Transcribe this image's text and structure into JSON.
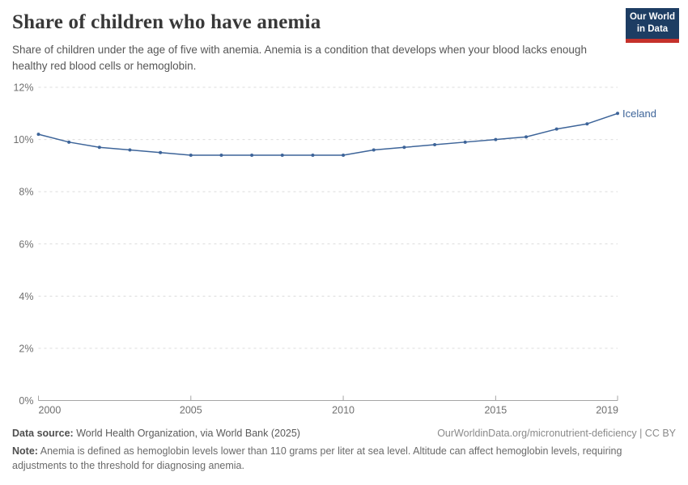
{
  "header": {
    "title": "Share of children who have anemia",
    "subtitle": "Share of children under the age of five with anemia. Anemia is a condition that develops when your blood lacks enough healthy red blood cells or hemoglobin.",
    "logo": {
      "line1": "Our World",
      "line2": "in Data",
      "bg_color": "#1d3d63",
      "bar_color": "#c5312b"
    }
  },
  "chart_data": {
    "type": "line",
    "title": "Share of children who have anemia",
    "entity": "Iceland",
    "end_label": "Iceland",
    "x": [
      2000,
      2001,
      2002,
      2003,
      2004,
      2005,
      2006,
      2007,
      2008,
      2009,
      2010,
      2011,
      2012,
      2013,
      2014,
      2015,
      2016,
      2017,
      2018,
      2019
    ],
    "series": [
      {
        "name": "Iceland",
        "color": "#3d6499",
        "values": [
          10.2,
          9.9,
          9.7,
          9.6,
          9.5,
          9.4,
          9.4,
          9.4,
          9.4,
          9.4,
          9.4,
          9.6,
          9.7,
          9.8,
          9.9,
          10.0,
          10.1,
          10.4,
          10.6,
          11.0
        ]
      }
    ],
    "unit": "%",
    "xlabel": "",
    "ylabel": "",
    "xlim": [
      2000,
      2019
    ],
    "ylim": [
      0,
      12
    ],
    "y_ticks": [
      0,
      2,
      4,
      6,
      8,
      10,
      12
    ],
    "x_ticks": [
      2000,
      2005,
      2010,
      2015,
      2019
    ],
    "grid": "horizontal-dashed",
    "markers": true,
    "legend_position": "end-of-line",
    "colors": {
      "line": "#3d6499",
      "gridline": "#dcdcdc",
      "axis": "#a5a5a5",
      "tick_label": "#6f6f6f"
    }
  },
  "footer": {
    "source_label": "Data source:",
    "source_text": " World Health Organization, via World Bank (2025)",
    "citation": "OurWorldinData.org/micronutrient-deficiency | CC BY",
    "note_label": "Note:",
    "note_text": " Anemia is defined as hemoglobin levels lower than 110 grams per liter at sea level. Altitude can affect hemoglobin levels, requiring adjustments to the threshold for diagnosing anemia."
  }
}
